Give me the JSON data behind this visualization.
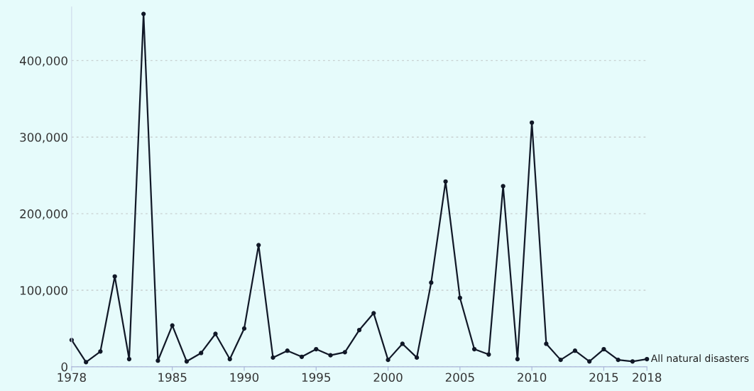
{
  "chart_data": {
    "type": "line",
    "x": [
      1978,
      1979,
      1980,
      1981,
      1982,
      1983,
      1984,
      1985,
      1986,
      1987,
      1988,
      1989,
      1990,
      1991,
      1992,
      1993,
      1994,
      1995,
      1996,
      1997,
      1998,
      1999,
      2000,
      2001,
      2002,
      2003,
      2004,
      2005,
      2006,
      2007,
      2008,
      2009,
      2010,
      2011,
      2012,
      2013,
      2014,
      2015,
      2016,
      2017,
      2018
    ],
    "series": [
      {
        "name": "All natural disasters",
        "color": "#111827",
        "values": [
          35000,
          6000,
          20000,
          118000,
          10000,
          461000,
          8000,
          54000,
          7000,
          18000,
          43000,
          10000,
          50000,
          159000,
          12000,
          21000,
          13000,
          23000,
          15000,
          19000,
          48000,
          70000,
          9000,
          30000,
          12000,
          110000,
          242000,
          90000,
          23000,
          16000,
          236000,
          10000,
          319000,
          30000,
          9000,
          21000,
          7000,
          23000,
          9000,
          7000,
          10000
        ]
      }
    ],
    "xlim": [
      1978,
      2018
    ],
    "xticks": [
      1978,
      1985,
      1990,
      1995,
      2000,
      2005,
      2010,
      2015,
      2018
    ],
    "ylim": [
      0,
      470000
    ],
    "yticks": [
      0,
      {
        "value": 100000,
        "label": "100,000"
      },
      {
        "value": 200000,
        "label": "200,000"
      },
      {
        "value": 300000,
        "label": "300,000"
      },
      {
        "value": 400000,
        "label": "400,000"
      }
    ],
    "grid": "y",
    "marker": "circle",
    "line_style": "solid",
    "legend": false
  }
}
